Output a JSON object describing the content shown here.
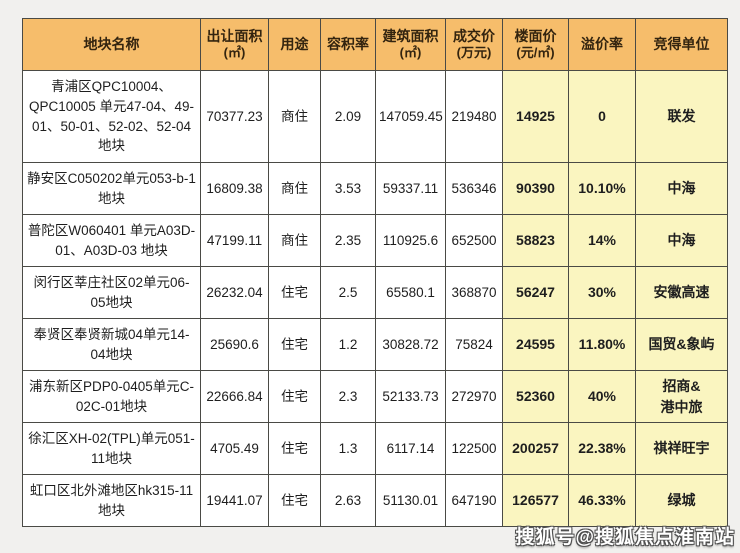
{
  "page": {
    "background_color": "#f1f0ee"
  },
  "table": {
    "style": {
      "header_bg": "#f6bd6b",
      "highlight_bg": "#faf5c0",
      "cell_bg": "#ffffff",
      "border_color": "#4a4a45",
      "header_text_color": "#33240f",
      "body_text_color": "#1e1e1e"
    },
    "columns": [
      {
        "key": "name",
        "label": "地块名称",
        "sub": ""
      },
      {
        "key": "area",
        "label": "出让面积",
        "sub": "(㎡)"
      },
      {
        "key": "use",
        "label": "用途",
        "sub": ""
      },
      {
        "key": "far",
        "label": "容积率",
        "sub": ""
      },
      {
        "key": "build",
        "label": "建筑面积",
        "sub": "(㎡)"
      },
      {
        "key": "price",
        "label": "成交价",
        "sub": "(万元)"
      },
      {
        "key": "floor",
        "label": "楼面价",
        "sub": "(元/㎡)"
      },
      {
        "key": "premium",
        "label": "溢价率",
        "sub": ""
      },
      {
        "key": "winner",
        "label": "竞得单位",
        "sub": ""
      }
    ],
    "rows": [
      {
        "name": "青浦区QPC10004、QPC10005 单元47-04、49-01、50-01、52-02、52-04 地块",
        "area": "70377.23",
        "use": "商住",
        "far": "2.09",
        "build": "147059.45",
        "price": "219480",
        "floor": "14925",
        "premium": "0",
        "winner": "联发"
      },
      {
        "name": "静安区C050202单元053-b-1地块",
        "area": "16809.38",
        "use": "商住",
        "far": "3.53",
        "build": "59337.11",
        "price": "536346",
        "floor": "90390",
        "premium": "10.10%",
        "winner": "中海"
      },
      {
        "name": "普陀区W060401 单元A03D-01、A03D-03 地块",
        "area": "47199.11",
        "use": "商住",
        "far": "2.35",
        "build": "110925.6",
        "price": "652500",
        "floor": "58823",
        "premium": "14%",
        "winner": "中海"
      },
      {
        "name": "闵行区莘庄社区02单元06-05地块",
        "area": "26232.04",
        "use": "住宅",
        "far": "2.5",
        "build": "65580.1",
        "price": "368870",
        "floor": "56247",
        "premium": "30%",
        "winner": "安徽高速"
      },
      {
        "name": "奉贤区奉贤新城04单元14-04地块",
        "area": "25690.6",
        "use": "住宅",
        "far": "1.2",
        "build": "30828.72",
        "price": "75824",
        "floor": "24595",
        "premium": "11.80%",
        "winner": "国贸&象屿"
      },
      {
        "name": "浦东新区PDP0-0405单元C-02C-01地块",
        "area": "22666.84",
        "use": "住宅",
        "far": "2.3",
        "build": "52133.73",
        "price": "272970",
        "floor": "52360",
        "premium": "40%",
        "winner": "招商&\n港中旅"
      },
      {
        "name": "徐汇区XH-02(TPL)单元051-11地块",
        "area": "4705.49",
        "use": "住宅",
        "far": "1.3",
        "build": "6117.14",
        "price": "122500",
        "floor": "200257",
        "premium": "22.38%",
        "winner": "祺祥旺宇"
      },
      {
        "name": "虹口区北外滩地区hk315-11地块",
        "area": "19441.07",
        "use": "住宅",
        "far": "2.63",
        "build": "51130.01",
        "price": "647190",
        "floor": "126577",
        "premium": "46.33%",
        "winner": "绿城"
      }
    ]
  },
  "watermark": {
    "text": "搜狐号@搜狐焦点淮南站"
  }
}
